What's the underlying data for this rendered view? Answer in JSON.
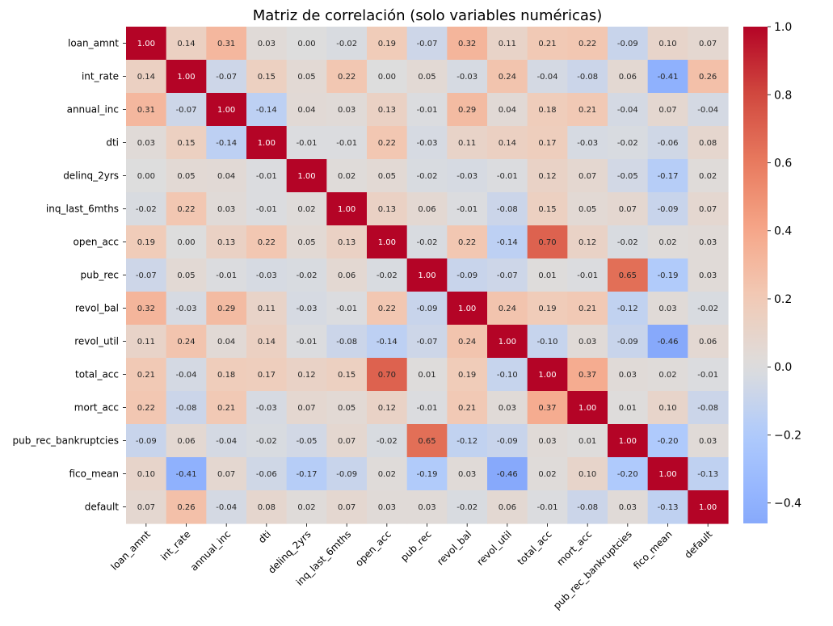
{
  "chart_data": {
    "type": "heatmap",
    "title": "Matriz de correlación (solo variables numéricas)",
    "variables": [
      "loan_amnt",
      "int_rate",
      "annual_inc",
      "dti",
      "delinq_2yrs",
      "inq_last_6mths",
      "open_acc",
      "pub_rec",
      "revol_bal",
      "revol_util",
      "total_acc",
      "mort_acc",
      "pub_rec_bankruptcies",
      "fico_mean",
      "default"
    ],
    "matrix": [
      [
        1.0,
        0.14,
        0.31,
        0.03,
        -0.0,
        -0.02,
        0.19,
        -0.07,
        0.32,
        0.11,
        0.21,
        0.22,
        -0.09,
        0.1,
        0.07
      ],
      [
        0.14,
        1.0,
        -0.07,
        0.15,
        0.05,
        0.22,
        -0.0,
        0.05,
        -0.03,
        0.24,
        -0.04,
        -0.08,
        0.06,
        -0.41,
        0.26
      ],
      [
        0.31,
        -0.07,
        1.0,
        -0.14,
        0.04,
        0.03,
        0.13,
        -0.01,
        0.29,
        0.04,
        0.18,
        0.21,
        -0.04,
        0.07,
        -0.04
      ],
      [
        0.03,
        0.15,
        -0.14,
        1.0,
        -0.01,
        -0.01,
        0.22,
        -0.03,
        0.11,
        0.14,
        0.17,
        -0.03,
        -0.02,
        -0.06,
        0.08
      ],
      [
        -0.0,
        0.05,
        0.04,
        -0.01,
        1.0,
        0.02,
        0.05,
        -0.02,
        -0.03,
        -0.01,
        0.12,
        0.07,
        -0.05,
        -0.17,
        0.02
      ],
      [
        -0.02,
        0.22,
        0.03,
        -0.01,
        0.02,
        1.0,
        0.13,
        0.06,
        -0.01,
        -0.08,
        0.15,
        0.05,
        0.07,
        -0.09,
        0.07
      ],
      [
        0.19,
        -0.0,
        0.13,
        0.22,
        0.05,
        0.13,
        1.0,
        -0.02,
        0.22,
        -0.14,
        0.7,
        0.12,
        -0.02,
        0.02,
        0.03
      ],
      [
        -0.07,
        0.05,
        -0.01,
        -0.03,
        -0.02,
        0.06,
        -0.02,
        1.0,
        -0.09,
        -0.07,
        0.01,
        -0.01,
        0.65,
        -0.19,
        0.03
      ],
      [
        0.32,
        -0.03,
        0.29,
        0.11,
        -0.03,
        -0.01,
        0.22,
        -0.09,
        1.0,
        0.24,
        0.19,
        0.21,
        -0.12,
        0.03,
        -0.02
      ],
      [
        0.11,
        0.24,
        0.04,
        0.14,
        -0.01,
        -0.08,
        -0.14,
        -0.07,
        0.24,
        1.0,
        -0.1,
        0.03,
        -0.09,
        -0.46,
        0.06
      ],
      [
        0.21,
        -0.04,
        0.18,
        0.17,
        0.12,
        0.15,
        0.7,
        0.01,
        0.19,
        -0.1,
        1.0,
        0.37,
        0.03,
        0.02,
        -0.01
      ],
      [
        0.22,
        -0.08,
        0.21,
        -0.03,
        0.07,
        0.05,
        0.12,
        -0.01,
        0.21,
        0.03,
        0.37,
        1.0,
        0.01,
        0.1,
        -0.08
      ],
      [
        -0.09,
        0.06,
        -0.04,
        -0.02,
        -0.05,
        0.07,
        -0.02,
        0.65,
        -0.12,
        -0.09,
        0.03,
        0.01,
        1.0,
        -0.2,
        0.03
      ],
      [
        0.1,
        -0.41,
        0.07,
        -0.06,
        -0.17,
        -0.09,
        0.02,
        -0.19,
        0.03,
        -0.46,
        0.02,
        0.1,
        -0.2,
        1.0,
        -0.13
      ],
      [
        0.07,
        0.26,
        -0.04,
        0.08,
        0.02,
        0.07,
        0.03,
        0.03,
        -0.02,
        0.06,
        -0.01,
        -0.08,
        0.03,
        -0.13,
        1.0
      ]
    ],
    "colormap": "coolwarm",
    "vmin": -0.46,
    "vmax": 1.0,
    "center": 0,
    "colorbar_ticks": [
      -0.4,
      -0.2,
      0.0,
      0.2,
      0.4,
      0.6,
      0.8,
      1.0
    ],
    "colorbar_tick_labels": [
      "−0.4",
      "−0.2",
      "0.0",
      "0.2",
      "0.4",
      "0.6",
      "0.8",
      "1.0"
    ],
    "annotation_format": "0.00"
  }
}
